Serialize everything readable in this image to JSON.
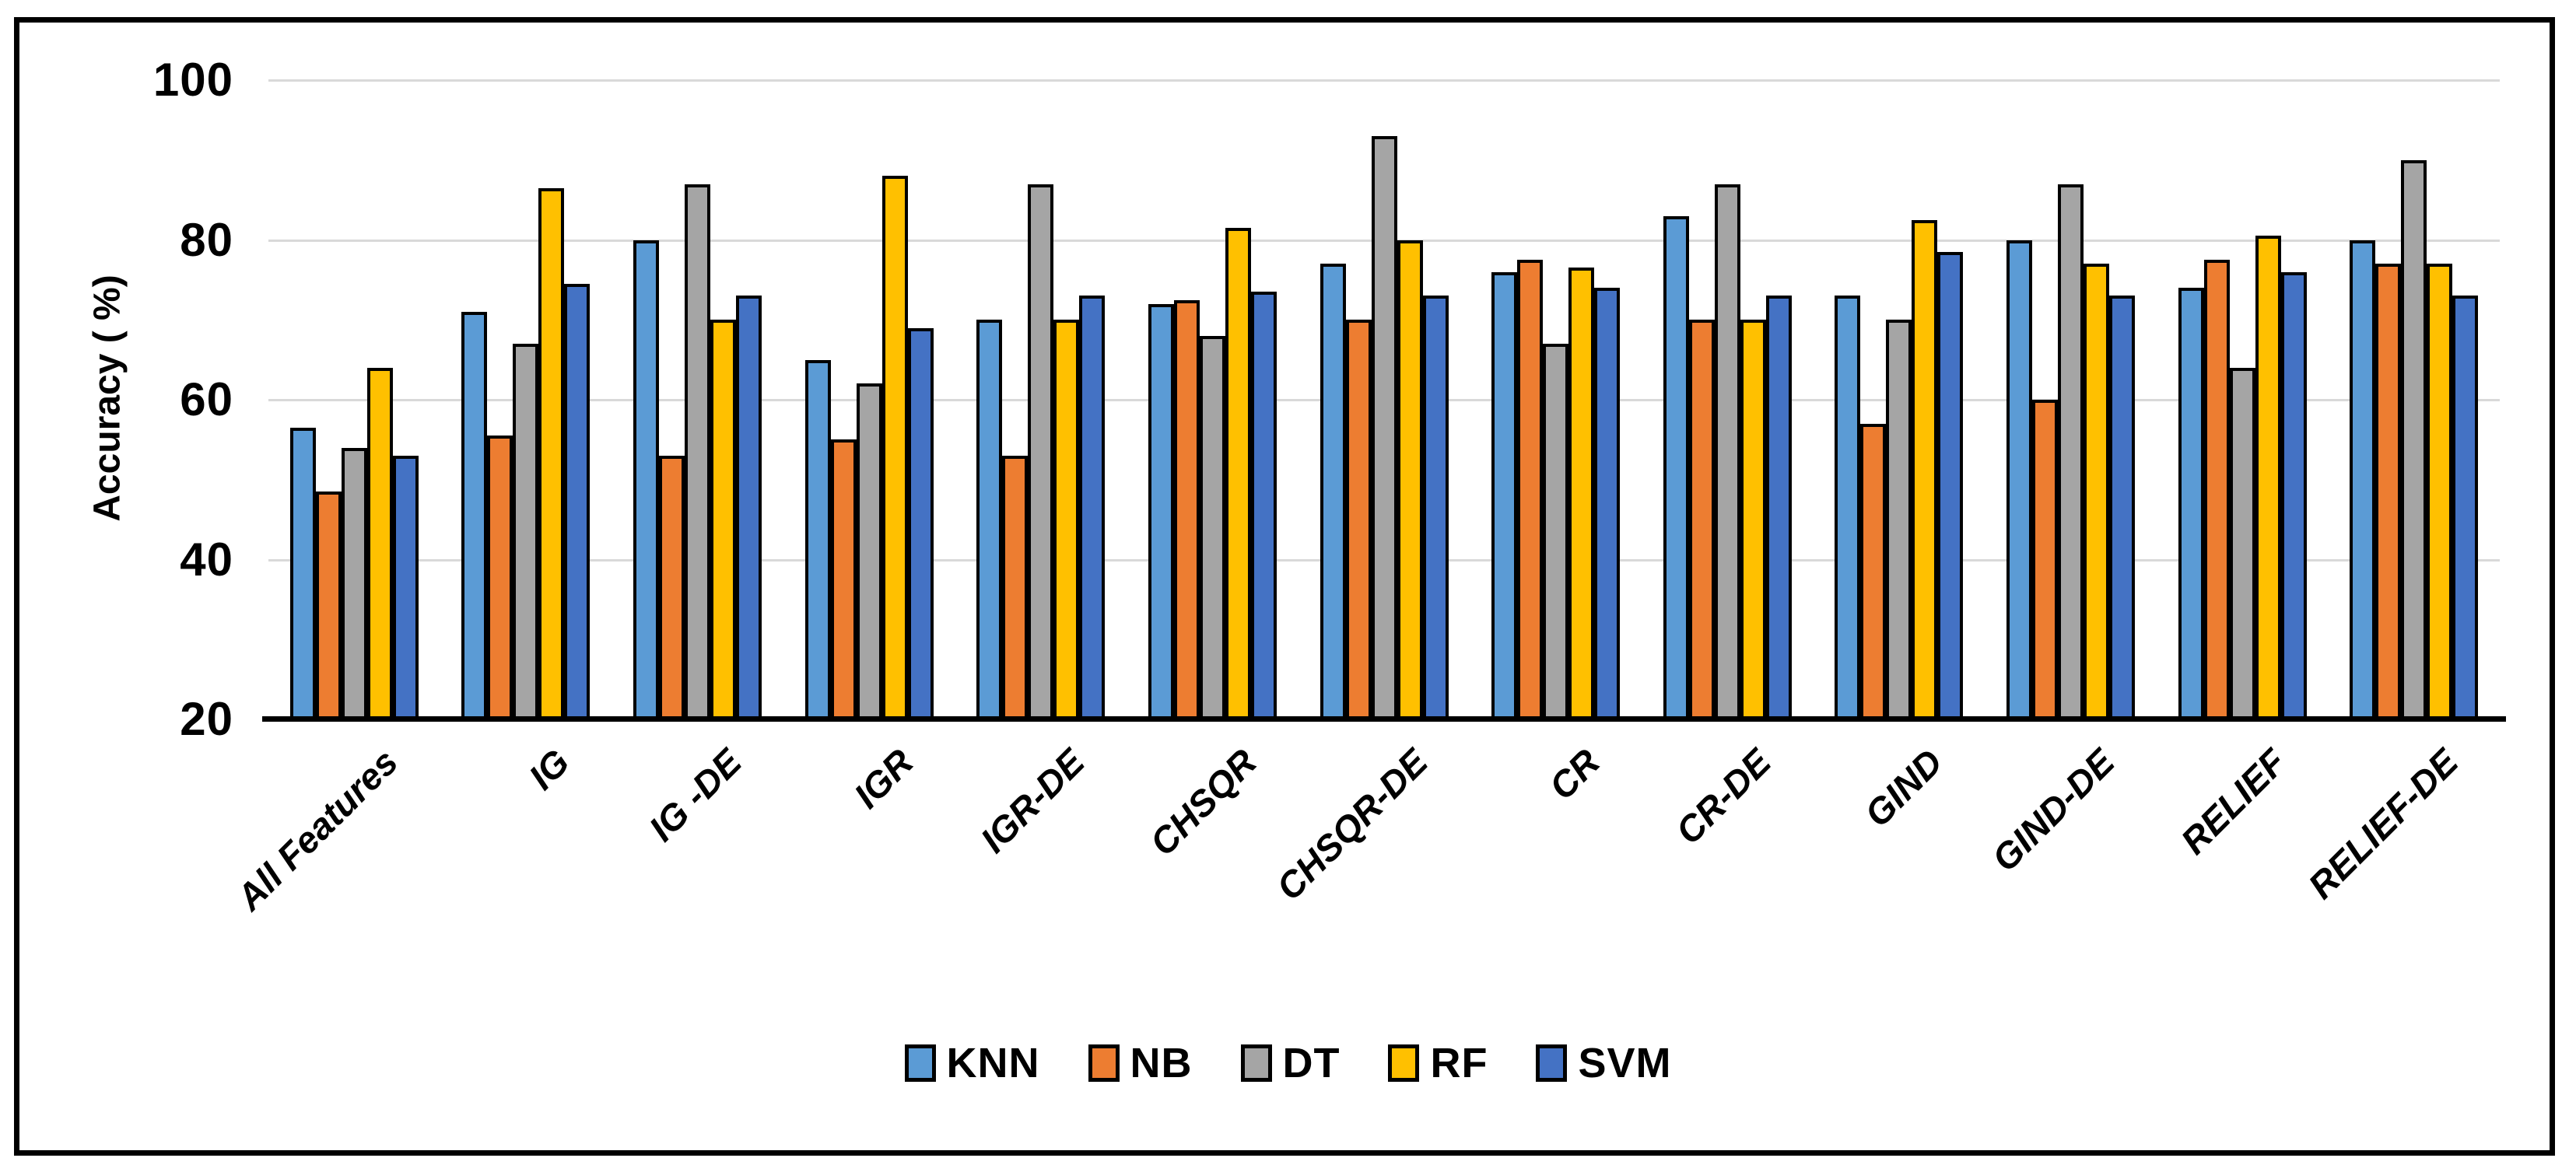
{
  "figure": {
    "background": "#ffffff",
    "border_color": "#000000",
    "gridline_color": "#D9D9D9",
    "axis_color": "#000000"
  },
  "chart_data": {
    "type": "bar",
    "title": "",
    "xlabel": "",
    "ylabel": "Accuracy ( %)",
    "ylim": [
      20,
      100
    ],
    "yticks": [
      100,
      80,
      60,
      40,
      20
    ],
    "grid": true,
    "legend_position": "bottom-center",
    "categories": [
      "All Features",
      "IG",
      "IG -DE",
      "IGR",
      "IGR-DE",
      "CHSQR",
      "CHSQR-DE",
      "CR",
      "CR-DE",
      "GIND",
      "GIND-DE",
      "RELIEF",
      "RELIEF-DE"
    ],
    "series": [
      {
        "name": "KNN",
        "color": "#5B9BD5",
        "values": [
          56.5,
          71,
          80,
          65,
          70,
          72,
          77,
          76,
          83,
          73,
          80,
          74,
          80
        ]
      },
      {
        "name": "NB",
        "color": "#ED7D31",
        "values": [
          48.5,
          55.5,
          53,
          55,
          53,
          72.5,
          70,
          77.5,
          70,
          57,
          60,
          77.5,
          77
        ]
      },
      {
        "name": "DT",
        "color": "#A5A5A5",
        "values": [
          54,
          67,
          87,
          62,
          87,
          68,
          93,
          67,
          87,
          70,
          87,
          64,
          90
        ]
      },
      {
        "name": "RF",
        "color": "#FFC000",
        "values": [
          64,
          86.5,
          70,
          88,
          70,
          81.5,
          80,
          76.5,
          70,
          82.5,
          77,
          80.5,
          77
        ]
      },
      {
        "name": "SVM",
        "color": "#4472C4",
        "values": [
          53,
          74.5,
          73,
          69,
          73,
          73.5,
          73,
          74,
          73,
          78.5,
          73,
          76,
          73
        ]
      }
    ]
  }
}
